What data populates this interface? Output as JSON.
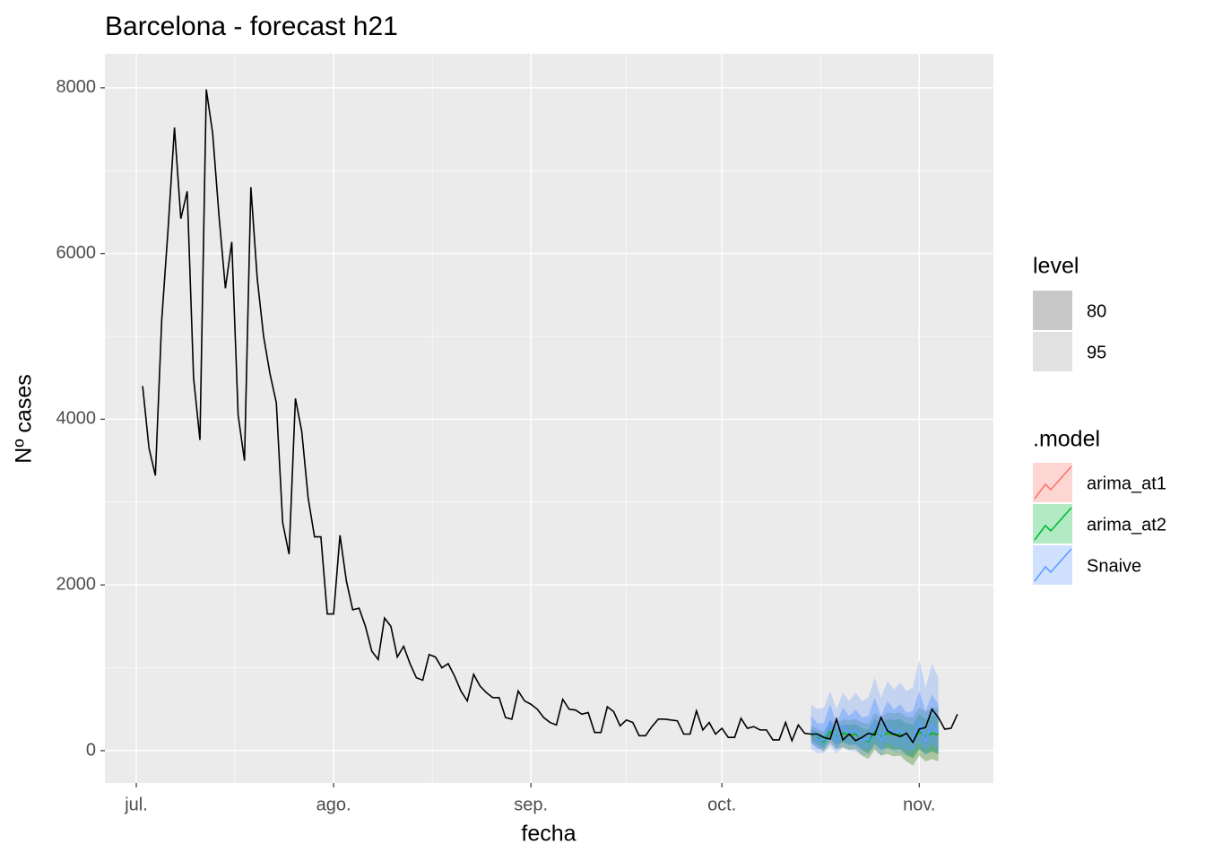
{
  "chart_data": {
    "type": "line",
    "title": "Barcelona - forecast h21",
    "xlabel": "fecha",
    "ylabel": "Nº cases",
    "xlim": [
      -4.93,
      134.65
    ],
    "ylim": [
      -390,
      8410
    ],
    "xticks": [
      {
        "value": 0,
        "label": "jul."
      },
      {
        "value": 31,
        "label": "ago."
      },
      {
        "value": 62,
        "label": "sep."
      },
      {
        "value": 92,
        "label": "oct."
      },
      {
        "value": 123,
        "label": "nov."
      }
    ],
    "yticks": [
      0,
      2000,
      4000,
      6000,
      8000
    ],
    "x_minor": [
      15.5,
      46.5,
      77,
      107.5
    ],
    "y_minor": [
      1000,
      3000,
      5000,
      7000
    ],
    "grid": true,
    "color": "#000000",
    "x": [
      1,
      2,
      3,
      4,
      5,
      6,
      7,
      8,
      9,
      10,
      11,
      12,
      13,
      14,
      15,
      16,
      17,
      18,
      19,
      20,
      21,
      22,
      23,
      24,
      25,
      26,
      27,
      28,
      29,
      30,
      31,
      32,
      33,
      34,
      35,
      36,
      37,
      38,
      39,
      40,
      41,
      42,
      43,
      44,
      45,
      46,
      47,
      48,
      49,
      50,
      51,
      52,
      53,
      54,
      55,
      56,
      57,
      58,
      59,
      60,
      61,
      62,
      63,
      64,
      65,
      66,
      67,
      68,
      69,
      70,
      71,
      72,
      73,
      74,
      75,
      76,
      77,
      78,
      79,
      80,
      81,
      82,
      83,
      84,
      85,
      86,
      87,
      88,
      89,
      90,
      91,
      92,
      93,
      94,
      95,
      96,
      97,
      98,
      99,
      100,
      101,
      102,
      103,
      104,
      105,
      106,
      107,
      108,
      109,
      110,
      111,
      112,
      113,
      114,
      115,
      116,
      117,
      118,
      119,
      120,
      121,
      122,
      123,
      124,
      125,
      126,
      127,
      128,
      129
    ],
    "values": [
      4400,
      3650,
      3320,
      5200,
      6300,
      7520,
      6420,
      6750,
      4500,
      3750,
      7980,
      7450,
      6450,
      5580,
      6140,
      4050,
      3500,
      6800,
      5700,
      5000,
      4550,
      4200,
      2750,
      2370,
      4250,
      3850,
      3050,
      2580,
      2580,
      1650,
      1650,
      2600,
      2050,
      1700,
      1720,
      1500,
      1200,
      1100,
      1600,
      1500,
      1130,
      1260,
      1050,
      880,
      850,
      1160,
      1130,
      1000,
      1050,
      900,
      720,
      600,
      920,
      780,
      700,
      640,
      640,
      400,
      380,
      720,
      600,
      560,
      500,
      400,
      340,
      310,
      620,
      500,
      490,
      440,
      460,
      220,
      220,
      530,
      470,
      300,
      370,
      340,
      180,
      180,
      290,
      380,
      380,
      370,
      360,
      200,
      200,
      480,
      250,
      340,
      200,
      270,
      160,
      160,
      390,
      270,
      290,
      250,
      250,
      130,
      130,
      340,
      120,
      310,
      210,
      200,
      200,
      160,
      140,
      380,
      130,
      200,
      120,
      160,
      210,
      190,
      400,
      240,
      200,
      170,
      210,
      100,
      260,
      280,
      500,
      400,
      260,
      270,
      440
    ],
    "level_title": "level",
    "levels": [
      80,
      95
    ],
    "model_title": ".model",
    "forecast": {
      "x": [
        106,
        107,
        108,
        109,
        110,
        111,
        112,
        113,
        114,
        115,
        116,
        117,
        118,
        119,
        120,
        121,
        122,
        123,
        124,
        125,
        126
      ],
      "series": [
        {
          "name": "arima_at1",
          "color": "#F8766D",
          "values": [
            190,
            145,
            115,
            225,
            165,
            205,
            185,
            195,
            140,
            115,
            225,
            165,
            205,
            185,
            195,
            140,
            115,
            225,
            165,
            205,
            185
          ],
          "upper_80": [
            260,
            220,
            190,
            320,
            270,
            320,
            310,
            320,
            270,
            250,
            380,
            330,
            380,
            370,
            380,
            330,
            310,
            440,
            380,
            430,
            420
          ],
          "lower_80": [
            140,
            80,
            30,
            140,
            70,
            100,
            70,
            80,
            10,
            -30,
            80,
            10,
            40,
            10,
            20,
            -50,
            -90,
            20,
            -40,
            -10,
            -40
          ],
          "upper_95": [
            300,
            260,
            230,
            370,
            320,
            380,
            370,
            380,
            340,
            320,
            450,
            400,
            460,
            450,
            460,
            410,
            400,
            520,
            470,
            520,
            510
          ],
          "lower_95": [
            100,
            40,
            -10,
            90,
            20,
            40,
            10,
            20,
            -60,
            -100,
            10,
            -60,
            -40,
            -70,
            -60,
            -130,
            -180,
            -60,
            -130,
            -100,
            -130
          ]
        },
        {
          "name": "arima_at2",
          "color": "#00BA38",
          "values": [
            200,
            150,
            110,
            230,
            170,
            210,
            190,
            200,
            140,
            110,
            230,
            170,
            210,
            190,
            200,
            140,
            110,
            230,
            170,
            210,
            190
          ],
          "upper_80": [
            260,
            220,
            190,
            320,
            270,
            320,
            310,
            320,
            270,
            250,
            380,
            330,
            380,
            370,
            380,
            330,
            310,
            440,
            380,
            430,
            420
          ],
          "lower_80": [
            140,
            80,
            30,
            140,
            70,
            100,
            70,
            80,
            10,
            -30,
            80,
            10,
            40,
            10,
            20,
            -50,
            -90,
            20,
            -40,
            -10,
            -40
          ],
          "upper_95": [
            300,
            260,
            230,
            370,
            320,
            380,
            370,
            380,
            340,
            320,
            450,
            400,
            460,
            450,
            460,
            410,
            400,
            520,
            470,
            520,
            510
          ],
          "lower_95": [
            100,
            40,
            -10,
            90,
            20,
            40,
            10,
            20,
            -60,
            -100,
            10,
            -60,
            -40,
            -70,
            -60,
            -130,
            -180,
            -60,
            -130,
            -100,
            -130
          ]
        },
        {
          "name": "Snaive",
          "color": "#619CFF",
          "values": [
            250,
            130,
            130,
            340,
            120,
            310,
            210,
            250,
            130,
            130,
            340,
            120,
            310,
            210,
            250,
            130,
            130,
            340,
            120,
            310,
            210
          ],
          "upper_80": [
            420,
            330,
            330,
            560,
            330,
            520,
            420,
            500,
            400,
            420,
            640,
            420,
            600,
            500,
            560,
            460,
            480,
            720,
            480,
            680,
            560
          ],
          "lower_80": [
            90,
            20,
            20,
            150,
            10,
            130,
            60,
            60,
            10,
            10,
            120,
            0,
            100,
            40,
            40,
            0,
            0,
            100,
            0,
            80,
            20
          ],
          "upper_95": [
            560,
            500,
            520,
            720,
            500,
            700,
            600,
            700,
            600,
            640,
            880,
            640,
            840,
            740,
            820,
            720,
            760,
            1100,
            760,
            1050,
            880
          ],
          "lower_95": [
            20,
            -30,
            -30,
            60,
            -40,
            40,
            0,
            -10,
            -50,
            -50,
            30,
            -60,
            20,
            -20,
            -30,
            -60,
            -60,
            20,
            -60,
            0,
            -40
          ]
        }
      ]
    }
  }
}
